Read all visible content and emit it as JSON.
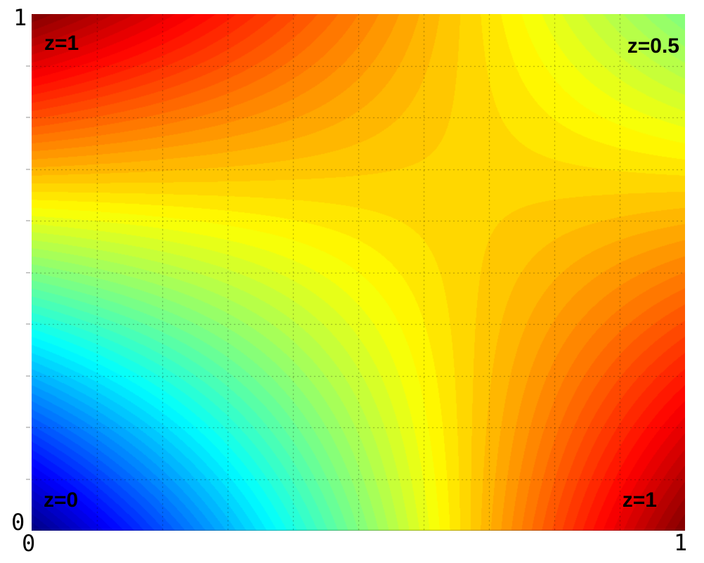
{
  "figure": {
    "background": "#ffffff",
    "text_color": "#000000",
    "annotations": {
      "top_left": "z=1",
      "top_right": "z=0.5",
      "bottom_left": "z=0",
      "bottom_right": "z=1"
    },
    "x_ticks": {
      "min": "0",
      "max": "1"
    },
    "y_ticks": {
      "min": "0",
      "max": "1"
    }
  },
  "chart_data": {
    "type": "heatmap",
    "subtype": "filled_contour_bilinear",
    "title": "",
    "xlabel": "",
    "ylabel": "",
    "xlim": [
      0,
      1
    ],
    "ylim": [
      0,
      1
    ],
    "zlim": [
      0,
      1
    ],
    "corner_values": {
      "z_at_x0_y0": 0,
      "z_at_x1_y0": 1,
      "z_at_x0_y1": 1,
      "z_at_x1_y1": 0.5
    },
    "z_function": "z(x,y) = bilinear interpolation of corner values = x + y - 1.5*x*y",
    "levels": 64,
    "colormap": "jet",
    "grid": {
      "visible": true,
      "step": 0.1,
      "style": "dotted",
      "color": "rgba(0,0,0,0.35)",
      "minor_tick_color": "#c9c9c9"
    },
    "edge_line": {
      "side": "bottom",
      "color": "rgba(0,0,0,0.30)"
    },
    "x_tick_labels": [
      "0",
      "1"
    ],
    "y_tick_labels": [
      "0",
      "1"
    ],
    "annotations": [
      {
        "text": "z=1",
        "x": 0.07,
        "y": 0.94
      },
      {
        "text": "z=0.5",
        "x": 0.96,
        "y": 0.94
      },
      {
        "text": "z=0",
        "x": 0.06,
        "y": 0.05
      },
      {
        "text": "z=1",
        "x": 0.93,
        "y": 0.05
      }
    ]
  }
}
